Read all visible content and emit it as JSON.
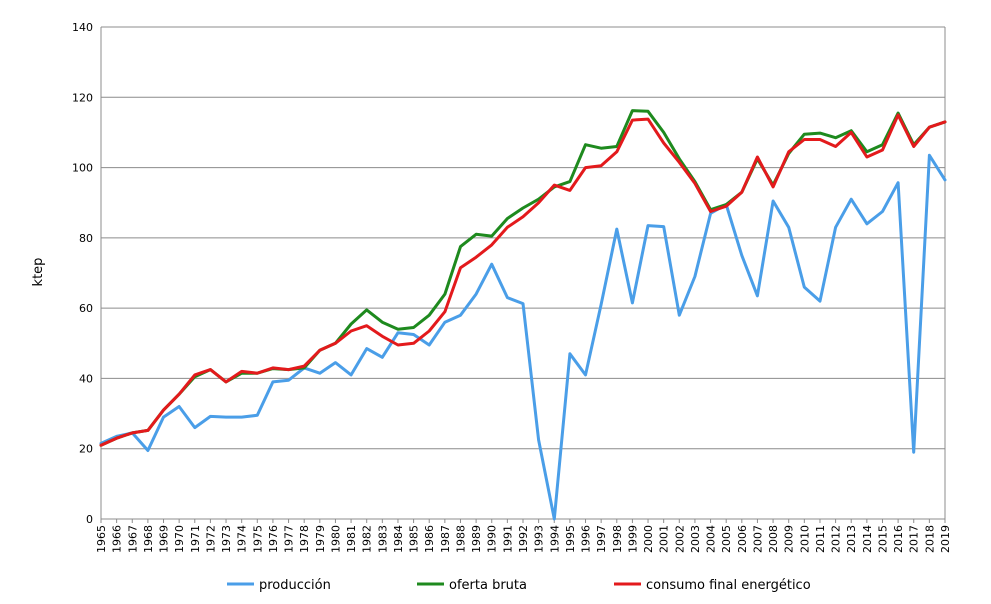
{
  "chart_data": {
    "type": "line",
    "title": "",
    "xlabel": "",
    "ylabel": "ktep",
    "ylim": [
      0,
      140
    ],
    "yticks": [
      0,
      20,
      40,
      60,
      80,
      100,
      120,
      140
    ],
    "grid": true,
    "legend_position": "bottom",
    "x": [
      1965,
      1966,
      1967,
      1968,
      1969,
      1970,
      1971,
      1972,
      1973,
      1974,
      1975,
      1976,
      1977,
      1978,
      1979,
      1980,
      1981,
      1982,
      1983,
      1984,
      1985,
      1986,
      1987,
      1988,
      1989,
      1990,
      1991,
      1992,
      1993,
      1994,
      1995,
      1996,
      1997,
      1998,
      1999,
      2000,
      2001,
      2002,
      2003,
      2004,
      2005,
      2006,
      2007,
      2008,
      2009,
      2010,
      2011,
      2012,
      2013,
      2014,
      2015,
      2016,
      2017,
      2018,
      2019
    ],
    "series": [
      {
        "name": "producción",
        "color": "#4a9ee8",
        "values": [
          21.5,
          23.5,
          24.5,
          19.5,
          29,
          32,
          26,
          29.2,
          29,
          29,
          29.5,
          39,
          39.5,
          43,
          41.5,
          44.5,
          41,
          48.5,
          46,
          53,
          52.5,
          49.5,
          56,
          58,
          64,
          72.5,
          63,
          61.3,
          22.5,
          0,
          47,
          41,
          61,
          82.5,
          61.5,
          83.5,
          83.2,
          58,
          69,
          87,
          89.5,
          75,
          63.5,
          90.5,
          83,
          66,
          62,
          83,
          91,
          84,
          87.5,
          95.7,
          19,
          103.5,
          96.5
        ]
      },
      {
        "name": "oferta bruta",
        "color": "#1e8a1e",
        "values": [
          21,
          23,
          24.5,
          25.2,
          31,
          35.5,
          40.5,
          42.5,
          39,
          41.5,
          41.5,
          42.8,
          42.5,
          43,
          48,
          50,
          55.5,
          59.5,
          56,
          54,
          54.5,
          58,
          64,
          77.5,
          81,
          80.5,
          85.5,
          88.5,
          91,
          94.5,
          96,
          106.5,
          105.5,
          106,
          116.2,
          116,
          110,
          102.5,
          96,
          88,
          89.5,
          93,
          102.5,
          95,
          104,
          109.5,
          109.8,
          108.5,
          110.5,
          104.5,
          106.5,
          115.5,
          106.5,
          111.5,
          113
        ]
      },
      {
        "name": "consumo final energético",
        "color": "#e31a1c",
        "values": [
          21,
          23,
          24.5,
          25.2,
          31,
          35.5,
          41,
          42.5,
          39,
          42,
          41.5,
          43,
          42.5,
          43.5,
          48,
          50,
          53.5,
          55,
          52,
          49.5,
          50,
          53.5,
          59,
          71.5,
          74.5,
          78,
          83,
          86,
          90,
          95,
          93.5,
          100,
          100.5,
          104.5,
          113.5,
          113.8,
          107,
          101.5,
          95.5,
          87.5,
          89,
          93,
          103,
          94.5,
          104.5,
          108,
          108,
          106,
          110,
          103,
          105,
          115,
          106,
          111.5,
          113
        ]
      }
    ]
  }
}
